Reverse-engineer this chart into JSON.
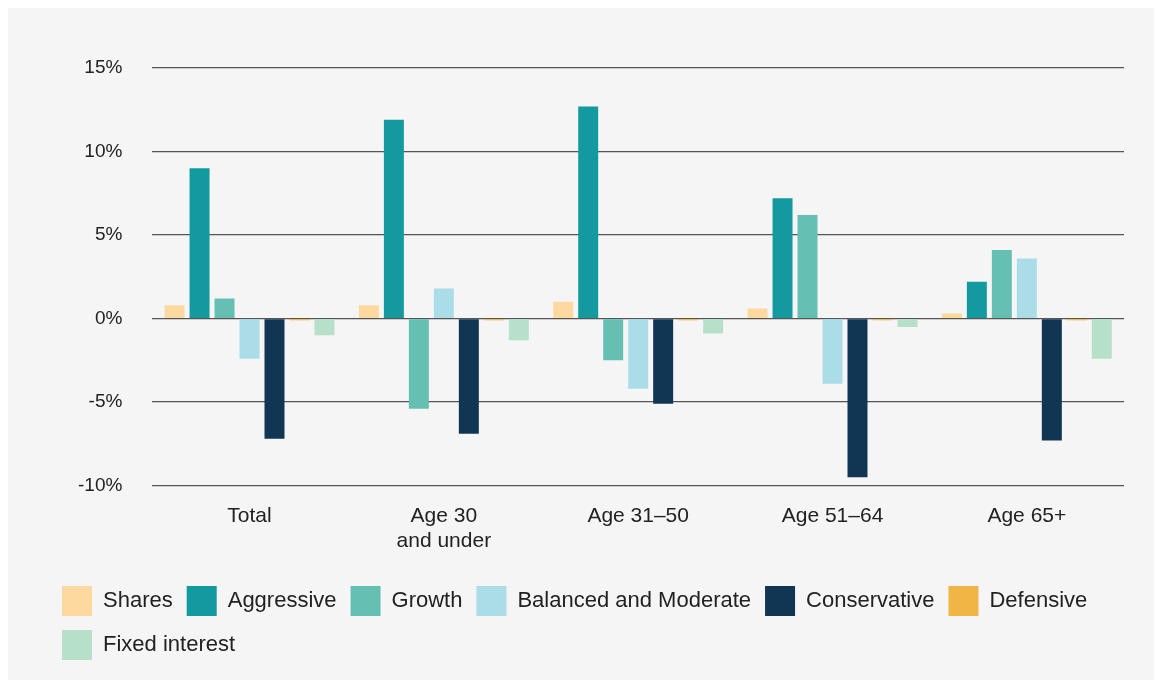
{
  "chart_data": {
    "type": "bar",
    "categories": [
      "Total",
      "Age 30 and under",
      "Age 31–50",
      "Age 51–64",
      "Age 65+"
    ],
    "series": [
      {
        "name": "Shares",
        "color": "#fdd9a0",
        "values": [
          0.8,
          0.8,
          1.0,
          0.6,
          0.3
        ]
      },
      {
        "name": "Aggressive",
        "color": "#129aa0",
        "values": [
          9.0,
          11.9,
          12.7,
          7.2,
          2.2
        ]
      },
      {
        "name": "Growth",
        "color": "#65c0b3",
        "values": [
          1.2,
          -5.4,
          -2.5,
          6.2,
          4.1
        ]
      },
      {
        "name": "Balanced and Moderate",
        "color": "#aadde8",
        "values": [
          -2.4,
          1.8,
          -4.2,
          -3.9,
          3.6
        ]
      },
      {
        "name": "Conservative",
        "color": "#113654",
        "values": [
          -7.2,
          -6.9,
          -5.1,
          -9.5,
          -7.3
        ]
      },
      {
        "name": "Defensive",
        "color": "#f0b545",
        "values": [
          -0.1,
          -0.1,
          -0.1,
          -0.1,
          -0.1
        ]
      },
      {
        "name": "Fixed interest",
        "color": "#b7e0ca",
        "values": [
          -1.0,
          -1.3,
          -0.9,
          -0.5,
          -2.4
        ]
      }
    ],
    "ylim": [
      -10,
      15
    ],
    "yticks": [
      {
        "value": -10,
        "label": "-10%"
      },
      {
        "value": -5,
        "label": "-5%"
      },
      {
        "value": 0,
        "label": "0%"
      },
      {
        "value": 5,
        "label": "5%"
      },
      {
        "value": 10,
        "label": "10%"
      },
      {
        "value": 15,
        "label": "15%"
      }
    ],
    "grid": "y",
    "legend": "bottom"
  }
}
